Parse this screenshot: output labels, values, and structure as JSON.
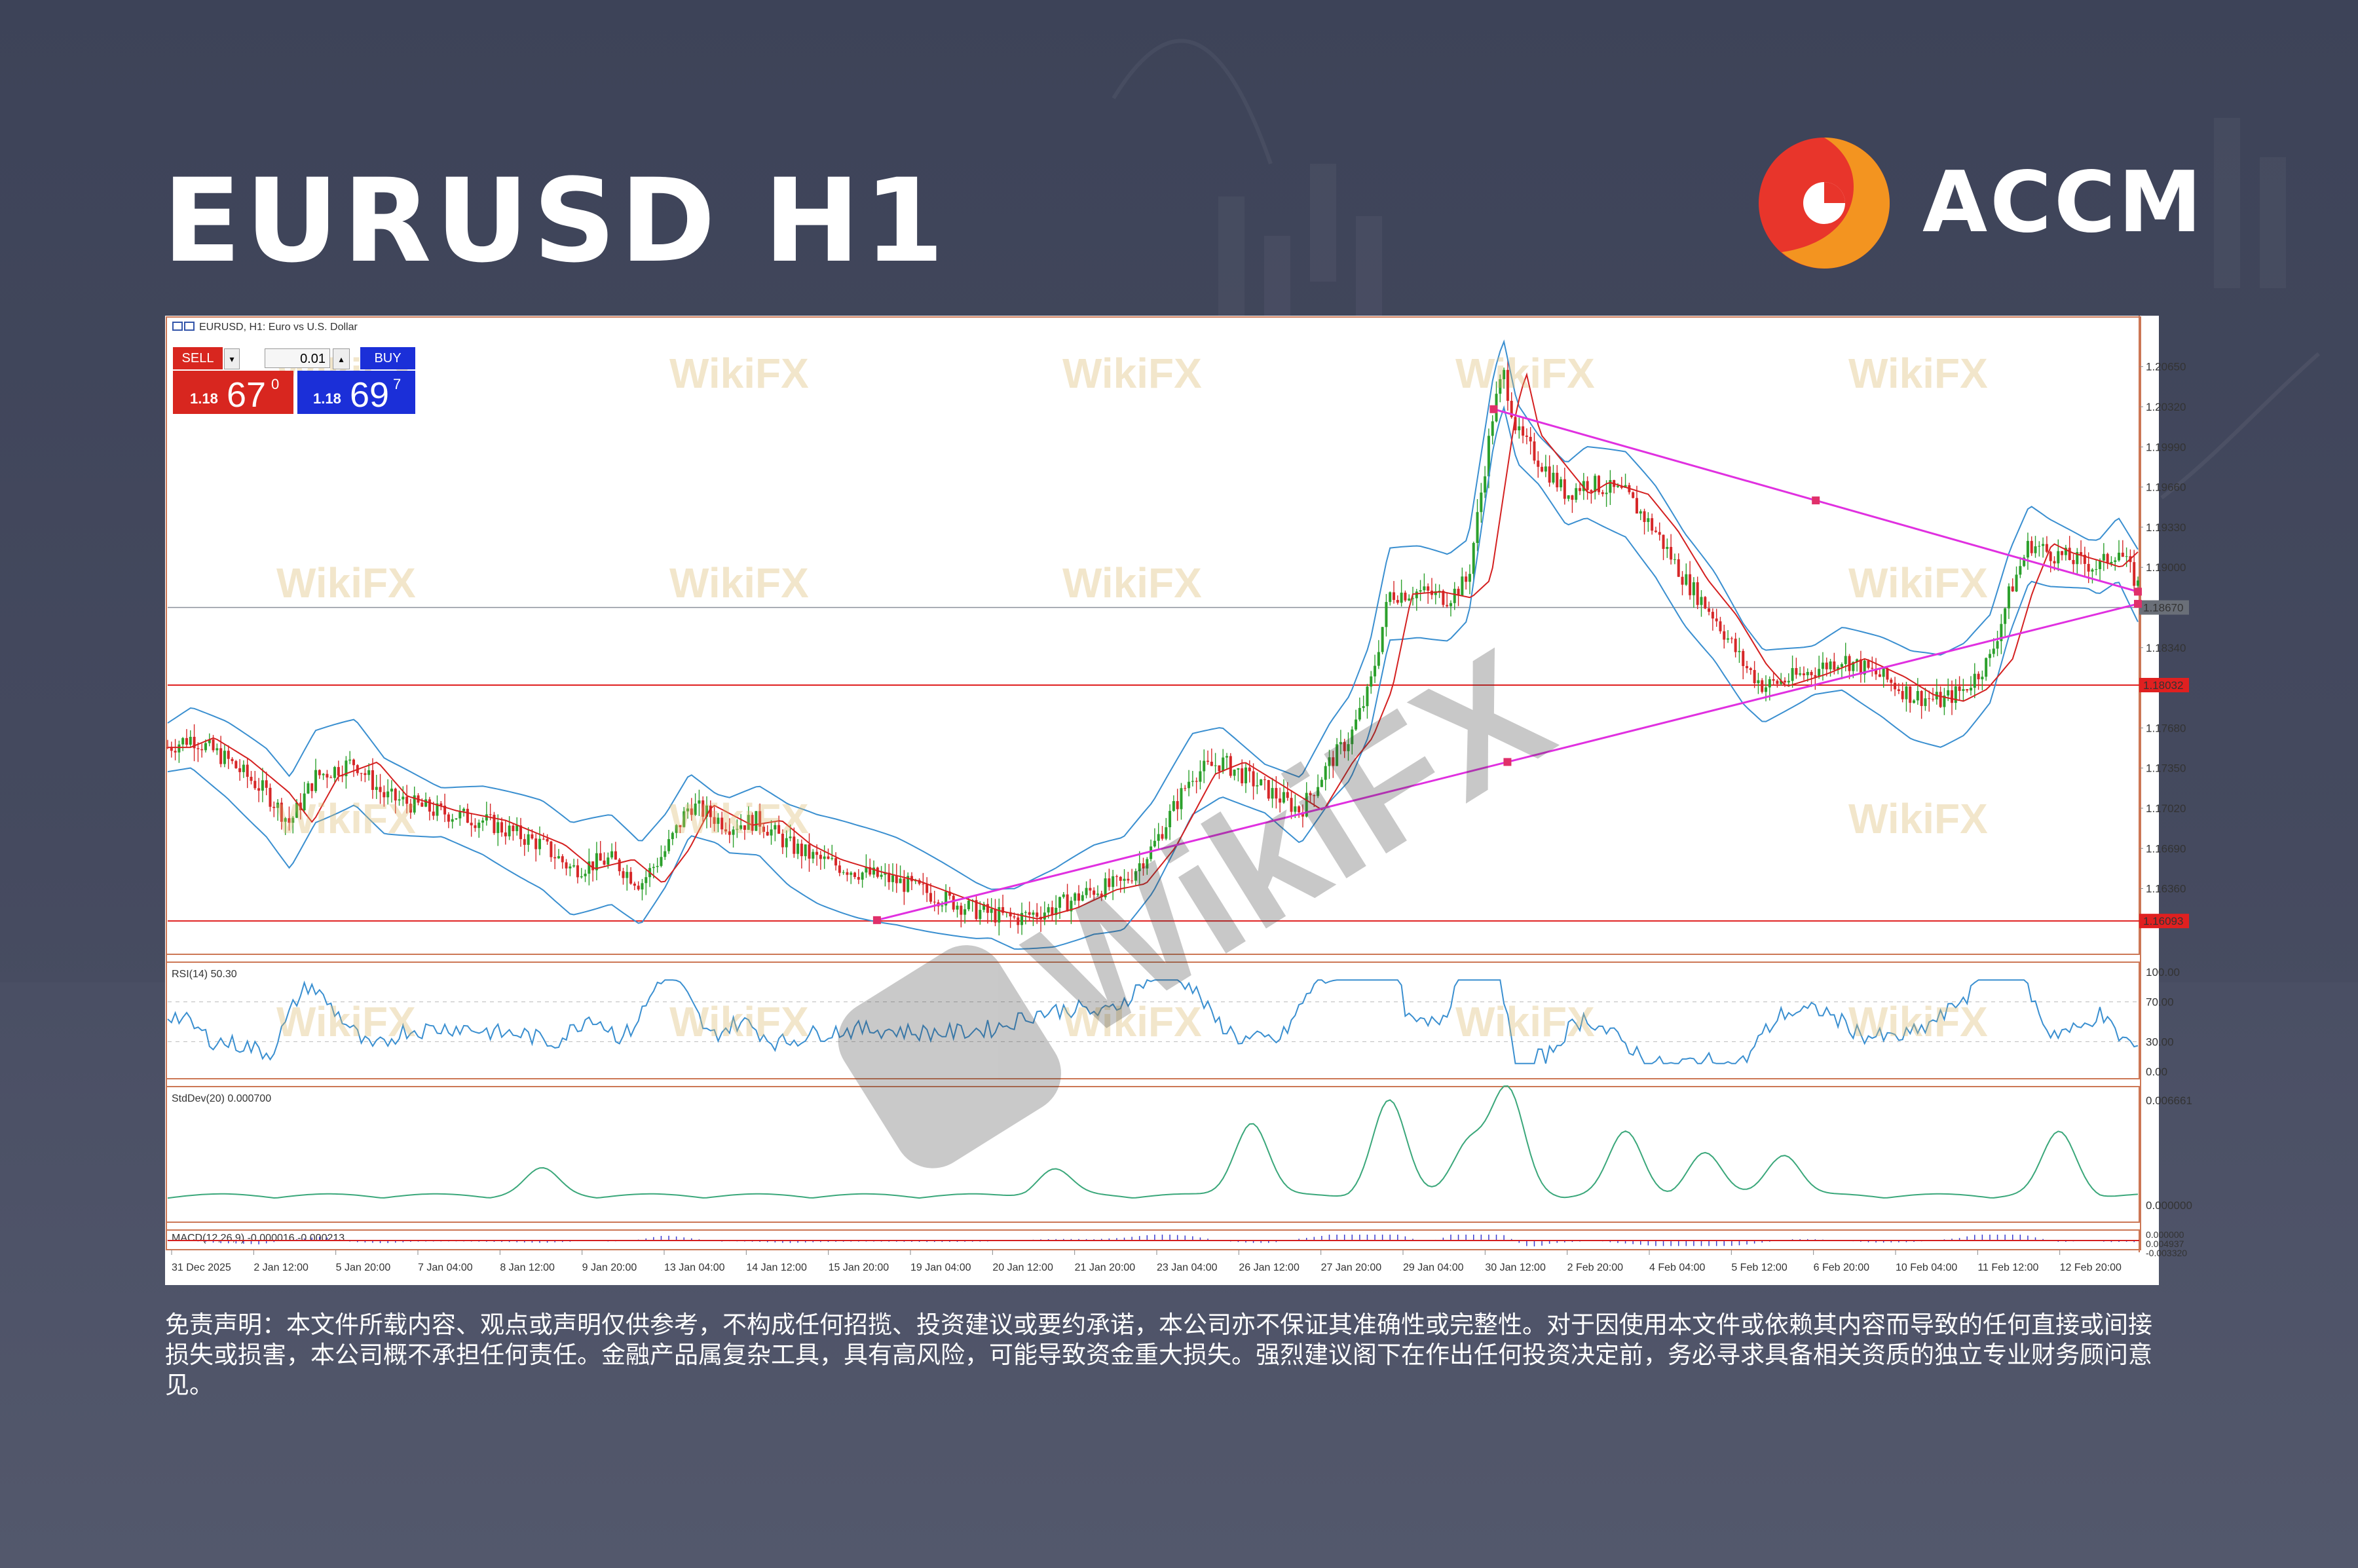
{
  "header": {
    "title": "EURUSD H1",
    "brand": "ACCM"
  },
  "colors": {
    "background": "#3d4358",
    "candle_up": "#2ca02c",
    "candle_down": "#d62728",
    "bollinger": "#3a8fd0",
    "moving_average": "#d42020",
    "trendline": "#e030e0",
    "level_line": "#e02020",
    "rsi": "#3a8fd0",
    "stddev": "#3aa77a",
    "macd_hist": "#3a3ad0",
    "macd_signal": "#d42020"
  },
  "trade_panel": {
    "sell_label": "SELL",
    "buy_label": "BUY",
    "lot": "0.01",
    "bid_prefix": "1.18",
    "bid_big": "67",
    "bid_sup": "0",
    "ask_prefix": "1.18",
    "ask_big": "69",
    "ask_sup": "7"
  },
  "chart_data": {
    "type": "candlestick",
    "symbol_label": "EURUSD, H1:  Euro vs U.S. Dollar",
    "ylim": [
      1.159,
      1.2095
    ],
    "y_ticks": [
      "1.20650",
      "1.20320",
      "1.19990",
      "1.19660",
      "1.19330",
      "1.19000",
      "1.18340",
      "1.17680",
      "1.17350",
      "1.17020",
      "1.16690",
      "1.16360"
    ],
    "current_price": "1.18670",
    "levels": [
      {
        "price": 1.18032,
        "label": "1.18032"
      },
      {
        "price": 1.16093,
        "label": "1.16093"
      }
    ],
    "x_ticks": [
      "31 Dec 2025",
      "2 Jan 12:00",
      "5 Jan 20:00",
      "7 Jan 04:00",
      "8 Jan 12:00",
      "9 Jan 20:00",
      "13 Jan 04:00",
      "14 Jan 12:00",
      "15 Jan 20:00",
      "19 Jan 04:00",
      "20 Jan 12:00",
      "21 Jan 20:00",
      "23 Jan 04:00",
      "26 Jan 12:00",
      "27 Jan 20:00",
      "29 Jan 04:00",
      "30 Jan 12:00",
      "2 Feb 20:00",
      "4 Feb 04:00",
      "5 Feb 12:00",
      "6 Feb 20:00",
      "10 Feb 04:00",
      "11 Feb 12:00",
      "12 Feb 20:00"
    ],
    "price_path": [
      [
        0,
        1.1752
      ],
      [
        0.012,
        1.176
      ],
      [
        0.03,
        1.1742
      ],
      [
        0.05,
        1.1715
      ],
      [
        0.062,
        1.169
      ],
      [
        0.075,
        1.1728
      ],
      [
        0.095,
        1.174
      ],
      [
        0.11,
        1.1712
      ],
      [
        0.135,
        1.17
      ],
      [
        0.16,
        1.1692
      ],
      [
        0.19,
        1.1672
      ],
      [
        0.205,
        1.1652
      ],
      [
        0.225,
        1.166
      ],
      [
        0.24,
        1.164
      ],
      [
        0.253,
        1.1668
      ],
      [
        0.265,
        1.1705
      ],
      [
        0.285,
        1.1688
      ],
      [
        0.3,
        1.1692
      ],
      [
        0.315,
        1.1672
      ],
      [
        0.33,
        1.166
      ],
      [
        0.35,
        1.165
      ],
      [
        0.37,
        1.1642
      ],
      [
        0.39,
        1.163
      ],
      [
        0.41,
        1.1618
      ],
      [
        0.43,
        1.1611
      ],
      [
        0.45,
        1.162
      ],
      [
        0.47,
        1.1635
      ],
      [
        0.485,
        1.164
      ],
      [
        0.5,
        1.167
      ],
      [
        0.52,
        1.173
      ],
      [
        0.535,
        1.174
      ],
      [
        0.55,
        1.1725
      ],
      [
        0.565,
        1.171
      ],
      [
        0.575,
        1.17
      ],
      [
        0.59,
        1.174
      ],
      [
        0.6,
        1.176
      ],
      [
        0.61,
        1.18
      ],
      [
        0.62,
        1.1878
      ],
      [
        0.635,
        1.188
      ],
      [
        0.65,
        1.1875
      ],
      [
        0.66,
        1.189
      ],
      [
        0.673,
        1.203
      ],
      [
        0.678,
        1.206
      ],
      [
        0.685,
        1.201
      ],
      [
        0.695,
        1.199
      ],
      [
        0.71,
        1.196
      ],
      [
        0.72,
        1.197
      ],
      [
        0.74,
        1.196
      ],
      [
        0.755,
        1.193
      ],
      [
        0.77,
        1.189
      ],
      [
        0.785,
        1.186
      ],
      [
        0.8,
        1.182
      ],
      [
        0.81,
        1.1802
      ],
      [
        0.83,
        1.1812
      ],
      [
        0.85,
        1.1825
      ],
      [
        0.87,
        1.181
      ],
      [
        0.885,
        1.1795
      ],
      [
        0.9,
        1.179
      ],
      [
        0.912,
        1.18
      ],
      [
        0.925,
        1.1825
      ],
      [
        0.935,
        1.188
      ],
      [
        0.945,
        1.192
      ],
      [
        0.955,
        1.1912
      ],
      [
        0.97,
        1.1905
      ],
      [
        0.98,
        1.19
      ],
      [
        0.99,
        1.1915
      ],
      [
        1.0,
        1.1885
      ]
    ],
    "trendlines": [
      {
        "from": [
          0.673,
          1.203
        ],
        "to": [
          1.0,
          1.188
        ]
      },
      {
        "from": [
          0.36,
          1.161
        ],
        "to": [
          1.0,
          1.187
        ]
      }
    ],
    "indicators": [
      {
        "name": "RSI(14) 50.30",
        "ticks": [
          "100.00",
          "70.00",
          "30.00",
          "0.00"
        ]
      },
      {
        "name": "StdDev(20) 0.000700",
        "ticks": [
          "0.006661",
          "0.000000"
        ]
      },
      {
        "name": "MACD(12,26,9) -0.000016 -0.000213",
        "ticks": [
          "0.004937",
          "0.000000",
          "-0.003320"
        ]
      }
    ]
  },
  "watermark": "WikiFX",
  "disclaimer": "免责声明：本文件所载内容、观点或声明仅供参考，不构成任何招揽、投资建议或要约承诺，本公司亦不保证其准确性或完整性。对于因使用本文件或依赖其内容而导致的任何直接或间接损失或损害，本公司概不承担任何责任。金融产品属复杂工具，具有高风险，可能导致资金重大损失。强烈建议阁下在作出任何投资决定前，务必寻求具备相关资质的独立专业财务顾问意见。"
}
